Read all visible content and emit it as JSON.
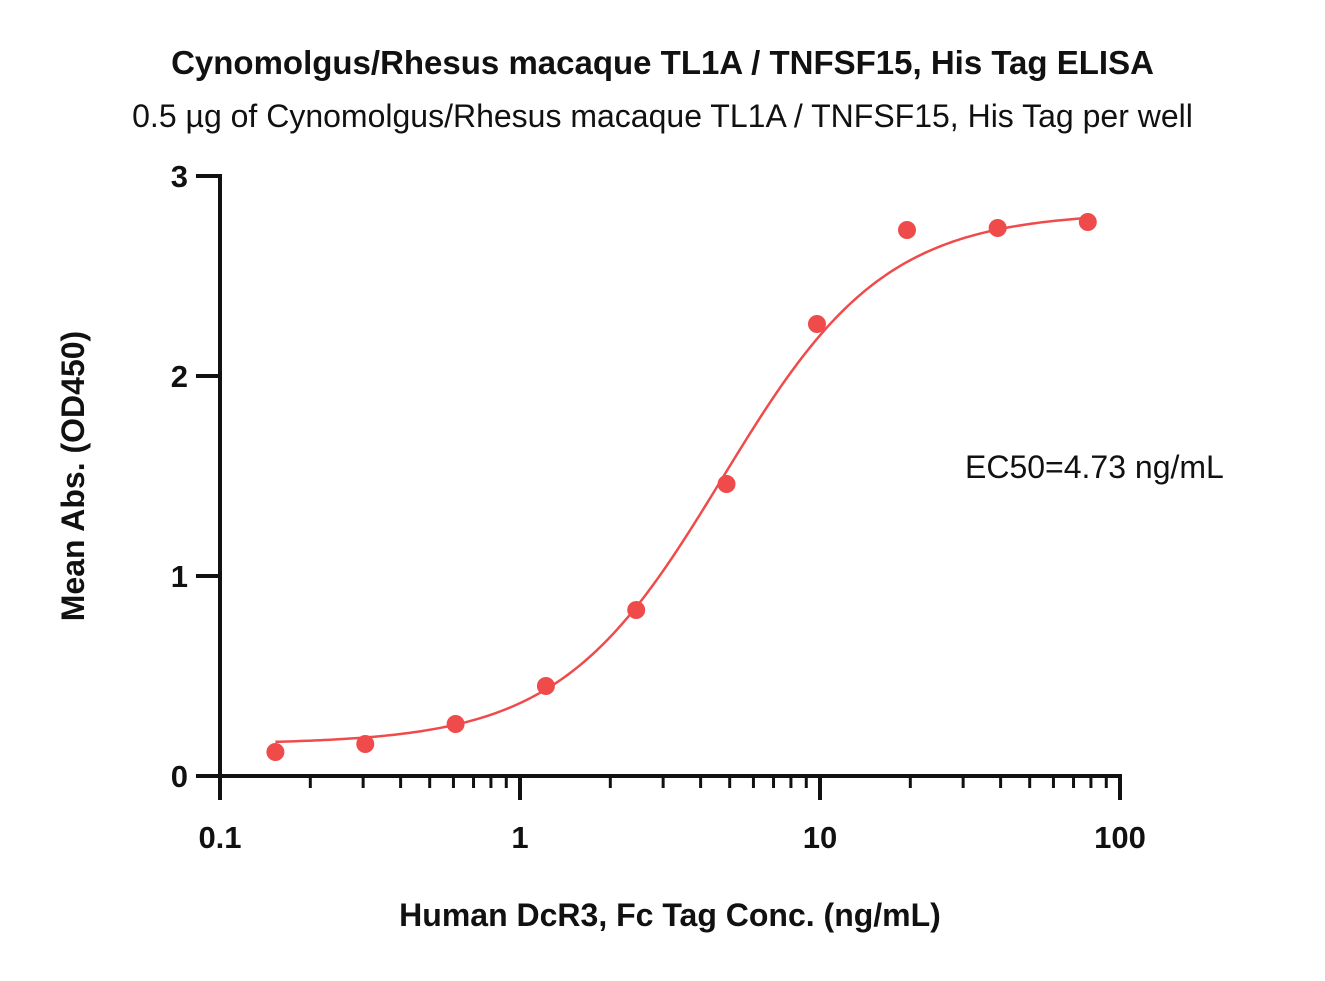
{
  "chart_data": {
    "type": "scatter",
    "title": "Cynomolgus/Rhesus macaque TL1A / TNFSF15, His Tag  ELISA",
    "subtitle": "0.5 µg of Cynomolgus/Rhesus macaque TL1A / TNFSF15, His Tag  per well",
    "xlabel": "Human DcR3, Fc Tag Conc. (ng/mL)",
    "ylabel": "Mean Abs. (OD450)",
    "xscale": "log",
    "xlim": [
      0.1,
      100
    ],
    "ylim": [
      0,
      3
    ],
    "xticks": [
      "0.1",
      "1",
      "10",
      "100"
    ],
    "yticks": [
      "0",
      "1",
      "2",
      "3"
    ],
    "annotation": "EC50=4.73 ng/mL",
    "color": "#f04b4b",
    "series": [
      {
        "x": [
          0.153,
          0.305,
          0.61,
          1.22,
          2.44,
          4.88,
          9.77,
          19.5,
          39.1,
          78.1
        ],
        "y": [
          0.12,
          0.16,
          0.26,
          0.45,
          0.83,
          1.46,
          2.26,
          2.73,
          2.74,
          2.77
        ]
      }
    ],
    "fit": {
      "model": "4PL",
      "bottom": 0.16,
      "top": 2.82,
      "ec50": 4.73,
      "hill": 1.6,
      "x_range": [
        0.153,
        78.1
      ]
    }
  }
}
